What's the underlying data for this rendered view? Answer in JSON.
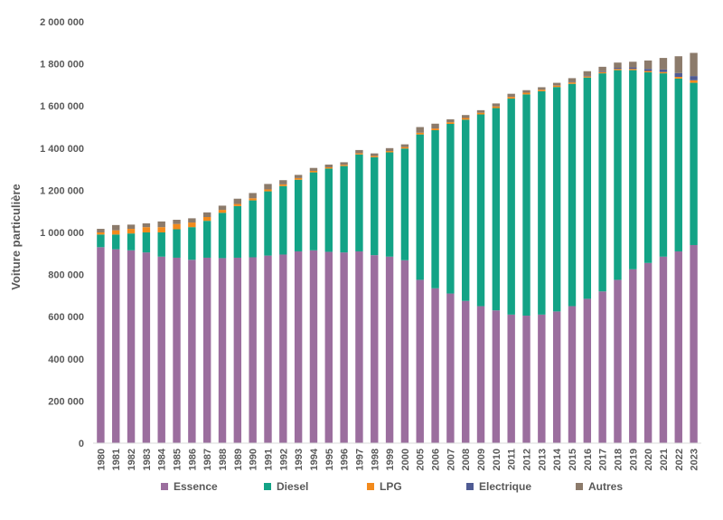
{
  "chart_data": {
    "type": "bar",
    "stacked": true,
    "ylabel": "Voiture particulière",
    "ylim": [
      0,
      2000000
    ],
    "yticks": [
      0,
      200000,
      400000,
      600000,
      800000,
      1000000,
      1200000,
      1400000,
      1600000,
      1800000,
      2000000
    ],
    "ytick_labels": [
      "0",
      "200 000",
      "400 000",
      "600 000",
      "800 000",
      "1 000 000",
      "1 200 000",
      "1 400 000",
      "1 600 000",
      "1 800 000",
      "2 000 000"
    ],
    "grid": false,
    "legend_position": "bottom",
    "categories": [
      "1980",
      "1981",
      "1982",
      "1983",
      "1984",
      "1985",
      "1986",
      "1987",
      "1988",
      "1989",
      "1990",
      "1991",
      "1992",
      "1993",
      "1994",
      "1995",
      "1996",
      "1997",
      "1998",
      "1999",
      "2000",
      "2005",
      "2006",
      "2007",
      "2008",
      "2009",
      "2010",
      "2011",
      "2012",
      "2013",
      "2014",
      "2015",
      "2016",
      "2017",
      "2018",
      "2019",
      "2020",
      "2021",
      "2022",
      "2023"
    ],
    "series": [
      {
        "name": "Essence",
        "color": "#9B6E9E",
        "values": [
          930000,
          920000,
          915000,
          905000,
          885000,
          880000,
          870000,
          880000,
          878000,
          880000,
          882000,
          890000,
          895000,
          910000,
          915000,
          908000,
          905000,
          910000,
          892000,
          885000,
          868000,
          775000,
          735000,
          710000,
          675000,
          650000,
          630000,
          610000,
          605000,
          610000,
          625000,
          650000,
          685000,
          720000,
          775000,
          825000,
          855000,
          885000,
          910000,
          940000
        ]
      },
      {
        "name": "Diesel",
        "color": "#13A386",
        "values": [
          60000,
          70000,
          80000,
          95000,
          115000,
          135000,
          155000,
          175000,
          215000,
          245000,
          270000,
          305000,
          325000,
          340000,
          370000,
          395000,
          410000,
          460000,
          465000,
          495000,
          530000,
          690000,
          750000,
          805000,
          860000,
          910000,
          960000,
          1025000,
          1050000,
          1060000,
          1065000,
          1055000,
          1050000,
          1035000,
          995000,
          945000,
          905000,
          870000,
          820000,
          770000
        ]
      },
      {
        "name": "LPG",
        "color": "#F28A1C",
        "values": [
          10000,
          20000,
          22000,
          25000,
          25000,
          25000,
          22000,
          18000,
          14000,
          10000,
          10000,
          9000,
          8000,
          8000,
          7000,
          6000,
          6000,
          6000,
          6000,
          6000,
          7000,
          8000,
          8000,
          8000,
          8000,
          8000,
          8000,
          8000,
          8000,
          7000,
          7000,
          7000,
          6000,
          6000,
          6000,
          6000,
          6000,
          6000,
          8000,
          12000
        ]
      },
      {
        "name": "Electrique",
        "color": "#4F5B93",
        "values": [
          0,
          0,
          0,
          0,
          0,
          0,
          0,
          0,
          0,
          0,
          0,
          0,
          0,
          0,
          0,
          0,
          0,
          0,
          0,
          0,
          0,
          0,
          0,
          0,
          0,
          0,
          0,
          0,
          0,
          0,
          1000,
          2000,
          3000,
          4000,
          5000,
          7000,
          10000,
          12000,
          18000,
          20000
        ]
      },
      {
        "name": "Autres",
        "color": "#8C7B6B",
        "values": [
          17000,
          25000,
          20000,
          18000,
          27000,
          20000,
          20000,
          22000,
          20000,
          25000,
          25000,
          26000,
          20000,
          15000,
          14000,
          13000,
          12000,
          15000,
          12000,
          14000,
          13000,
          27000,
          23000,
          14000,
          14000,
          12000,
          14000,
          15000,
          12000,
          12000,
          12000,
          18000,
          21000,
          21000,
          25000,
          27000,
          40000,
          55000,
          80000,
          110000
        ]
      }
    ]
  }
}
